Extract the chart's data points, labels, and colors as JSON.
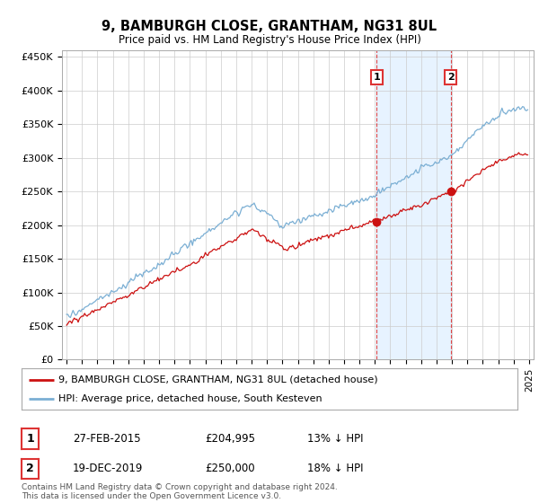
{
  "title": "9, BAMBURGH CLOSE, GRANTHAM, NG31 8UL",
  "subtitle": "Price paid vs. HM Land Registry's House Price Index (HPI)",
  "legend_line1": "9, BAMBURGH CLOSE, GRANTHAM, NG31 8UL (detached house)",
  "legend_line2": "HPI: Average price, detached house, South Kesteven",
  "footer1": "Contains HM Land Registry data © Crown copyright and database right 2024.",
  "footer2": "This data is licensed under the Open Government Licence v3.0.",
  "sale1_date": "27-FEB-2015",
  "sale1_price": "£204,995",
  "sale1_hpi": "13% ↓ HPI",
  "sale2_date": "19-DEC-2019",
  "sale2_price": "£250,000",
  "sale2_hpi": "18% ↓ HPI",
  "hpi_color": "#7bafd4",
  "property_color": "#cc1111",
  "vline_color": "#dd3333",
  "shade_color": "#ddeeff",
  "ylim": [
    0,
    460000
  ],
  "yticks": [
    0,
    50000,
    100000,
    150000,
    200000,
    250000,
    300000,
    350000,
    400000,
    450000
  ],
  "ytick_labels": [
    "£0",
    "£50K",
    "£100K",
    "£150K",
    "£200K",
    "£250K",
    "£300K",
    "£350K",
    "£400K",
    "£450K"
  ],
  "background_color": "#ffffff",
  "grid_color": "#cccccc",
  "sale1_year": 2015.125,
  "sale2_year": 2019.917,
  "sale1_value": 204995,
  "sale2_value": 250000
}
